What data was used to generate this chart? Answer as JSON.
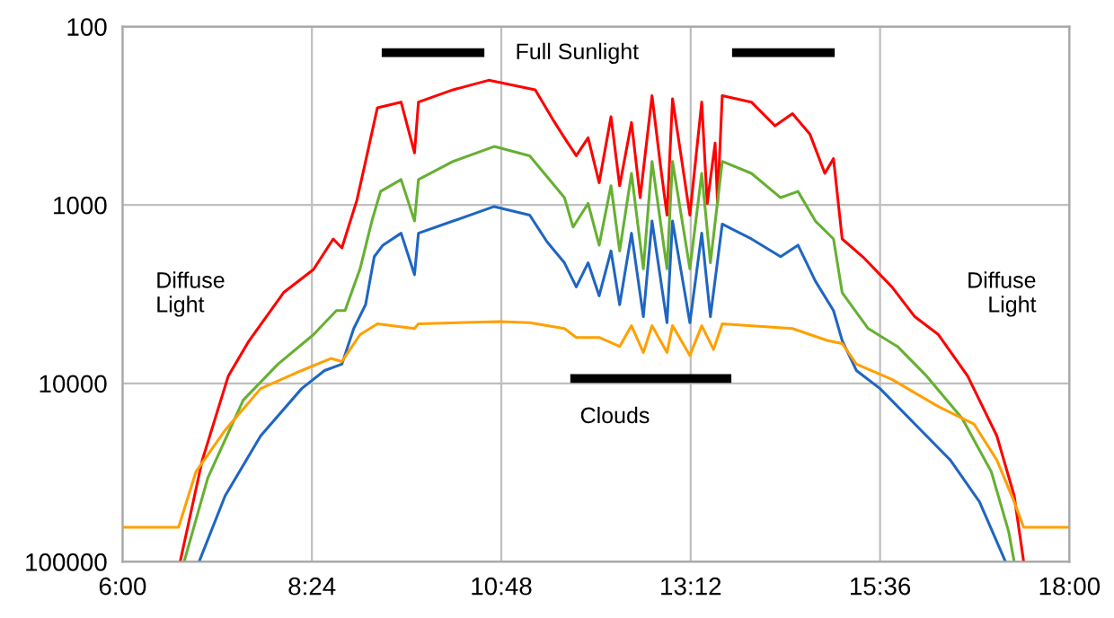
{
  "chart_data": {
    "type": "line",
    "log": "y",
    "grid": true,
    "xlim": [
      6,
      18
    ],
    "xticks": [
      {
        "value": 6,
        "label": "6:00"
      },
      {
        "value": 8.4,
        "label": "8:24"
      },
      {
        "value": 10.8,
        "label": "10:48"
      },
      {
        "value": 13.2,
        "label": "13:12"
      },
      {
        "value": 15.6,
        "label": "15:36"
      },
      {
        "value": 18,
        "label": "18:00"
      }
    ],
    "ylim": [
      100000,
      100
    ],
    "yticks": [
      100,
      1000,
      10000,
      100000
    ],
    "series": [
      {
        "color": "#ff0000",
        "x": [
          6.73,
          7.01,
          7.34,
          7.6,
          8.04,
          8.42,
          8.67,
          8.78,
          8.97,
          9.08,
          9.23,
          9.53,
          9.7,
          9.75,
          10.19,
          10.64,
          11.23,
          11.45,
          11.6,
          11.75,
          11.9,
          12.04,
          12.19,
          12.3,
          12.45,
          12.56,
          12.71,
          12.82,
          12.9,
          12.97,
          13.19,
          13.34,
          13.41,
          13.51,
          13.54,
          13.6,
          13.97,
          14.27,
          14.49,
          14.71,
          14.9,
          15.01,
          15.12,
          15.38,
          15.75,
          16.04,
          16.34,
          16.71,
          17.08,
          17.3,
          17.42
        ],
        "values": [
          100000,
          27000,
          9100,
          5800,
          3100,
          2300,
          1550,
          1740,
          940,
          570,
          285,
          265,
          510,
          265,
          226,
          200,
          226,
          330,
          420,
          530,
          420,
          750,
          320,
          780,
          345,
          910,
          244,
          615,
          1140,
          254,
          1140,
          265,
          980,
          450,
          980,
          244,
          265,
          360,
          308,
          400,
          665,
          550,
          1550,
          1950,
          2880,
          4230,
          5330,
          9100,
          19700,
          42700,
          100000
        ]
      },
      {
        "color": "#66b032",
        "x": [
          6.78,
          7.08,
          7.53,
          7.97,
          8.42,
          8.71,
          8.82,
          9.01,
          9.16,
          9.27,
          9.53,
          9.7,
          9.75,
          10.19,
          10.71,
          11.16,
          11.6,
          11.71,
          11.9,
          12.04,
          12.19,
          12.3,
          12.45,
          12.6,
          12.71,
          12.9,
          12.97,
          13.19,
          13.34,
          13.45,
          13.6,
          13.97,
          14.34,
          14.56,
          14.78,
          15.01,
          15.12,
          15.45,
          15.82,
          16.19,
          16.64,
          17.01,
          17.23,
          17.3
        ],
        "values": [
          100000,
          33900,
          12400,
          7800,
          5330,
          3910,
          3910,
          2280,
          1230,
          840,
          720,
          1230,
          720,
          570,
          470,
          530,
          910,
          1330,
          980,
          1680,
          780,
          1810,
          665,
          2280,
          570,
          2280,
          570,
          2280,
          665,
          2110,
          570,
          665,
          910,
          840,
          1230,
          1550,
          3100,
          4930,
          6210,
          9100,
          15700,
          31300,
          67800,
          100000
        ]
      },
      {
        "color": "#1f66c1",
        "x": [
          6.97,
          7.3,
          7.75,
          8.27,
          8.56,
          8.78,
          8.93,
          9.08,
          9.19,
          9.3,
          9.53,
          9.7,
          9.75,
          10.19,
          10.71,
          11.16,
          11.38,
          11.6,
          11.75,
          11.9,
          12.04,
          12.19,
          12.3,
          12.45,
          12.6,
          12.71,
          12.9,
          12.97,
          13.19,
          13.34,
          13.45,
          13.6,
          13.97,
          14.34,
          14.56,
          14.78,
          15.01,
          15.12,
          15.3,
          15.6,
          16.04,
          16.49,
          16.86,
          17.19
        ],
        "values": [
          100000,
          42700,
          19700,
          10700,
          8470,
          7800,
          4930,
          3620,
          1950,
          1680,
          1440,
          2460,
          1440,
          1230,
          1020,
          1140,
          1610,
          2110,
          2880,
          2110,
          3230,
          1810,
          3620,
          1440,
          4230,
          1230,
          4570,
          1230,
          4570,
          1440,
          4230,
          1280,
          1550,
          1950,
          1680,
          2670,
          3910,
          5750,
          8470,
          10700,
          16900,
          26900,
          46100,
          100000
        ]
      },
      {
        "color": "#ffa000",
        "x": [
          6.0,
          6.71,
          6.93,
          7.3,
          7.75,
          8.27,
          8.64,
          8.78,
          9.01,
          9.23,
          9.7,
          9.75,
          10.78,
          11.16,
          11.6,
          11.75,
          12.04,
          12.3,
          12.45,
          12.6,
          12.71,
          12.9,
          12.97,
          13.19,
          13.34,
          13.49,
          13.6,
          14.49,
          14.93,
          15.12,
          15.3,
          15.75,
          16.34,
          16.79,
          17.08,
          17.3,
          17.42,
          18.0
        ],
        "values": [
          64100,
          64100,
          31300,
          18300,
          10700,
          8470,
          7250,
          7540,
          5330,
          4640,
          4930,
          4640,
          4500,
          4570,
          4930,
          5530,
          5530,
          6210,
          4750,
          6720,
          4750,
          6720,
          4750,
          6970,
          4750,
          6460,
          4640,
          4930,
          5750,
          5980,
          7800,
          9500,
          13500,
          16900,
          26900,
          46100,
          64100,
          64100
        ]
      },
      {
        "color": "#000000",
        "x": [
          9.34,
          10.53
        ],
        "values": [
          140,
          140
        ]
      },
      {
        "color": "#000000",
        "x": [
          13.78,
          14.97
        ],
        "values": [
          140,
          140
        ]
      },
      {
        "color": "#000000",
        "x": [
          11.73,
          13.66
        ],
        "values": [
          9400,
          9400
        ]
      }
    ],
    "annotations": [
      "Full Sunlight",
      "Clouds",
      "Diffuse\nLight",
      "Diffuse\nLight"
    ]
  }
}
